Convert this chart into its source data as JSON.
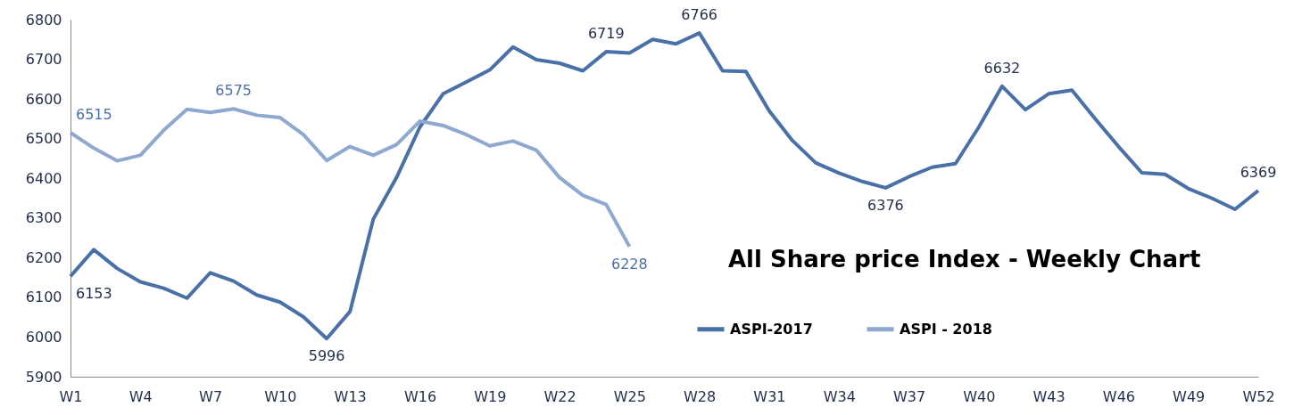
{
  "chart_data": {
    "type": "line",
    "title": "All Share price Index - Weekly Chart",
    "categories": [
      "W1",
      null,
      null,
      "W4",
      null,
      null,
      "W7",
      null,
      null,
      "W10",
      null,
      null,
      "W13",
      null,
      null,
      "W16",
      null,
      null,
      "W19",
      null,
      null,
      "W22",
      null,
      null,
      "W25",
      null,
      null,
      "W28",
      null,
      null,
      "W31",
      null,
      null,
      "W34",
      null,
      null,
      "W37",
      null,
      null,
      "W40",
      null,
      null,
      "W43",
      null,
      null,
      "W46",
      null,
      null,
      "W49",
      null,
      null,
      "W52"
    ],
    "series": [
      {
        "name": "ASPI-2017",
        "color": "#4a71a7",
        "values": [
          6153,
          6220,
          6173,
          6139,
          6123,
          6098,
          6162,
          6141,
          6106,
          6088,
          6051,
          5996,
          6064,
          6297,
          6402,
          6529,
          6613,
          6643,
          6673,
          6731,
          6699,
          6690,
          6671,
          6719,
          6716,
          6750,
          6739,
          6766,
          6671,
          6669,
          6570,
          6495,
          6439,
          6413,
          6392,
          6376,
          6404,
          6428,
          6437,
          6529,
          6632,
          6573,
          6613,
          6622,
          6550,
          6480,
          6414,
          6410,
          6374,
          6350,
          6322,
          6369
        ],
        "value_labels": [
          "6153",
          null,
          null,
          null,
          null,
          null,
          null,
          null,
          null,
          null,
          null,
          "5996",
          null,
          null,
          null,
          null,
          null,
          null,
          null,
          null,
          null,
          null,
          null,
          "6719",
          null,
          null,
          null,
          "6766",
          null,
          null,
          null,
          null,
          null,
          null,
          null,
          "6376",
          null,
          null,
          null,
          null,
          "6632",
          null,
          null,
          null,
          null,
          null,
          null,
          null,
          null,
          null,
          null,
          "6369"
        ]
      },
      {
        "name": "ASPI - 2018",
        "color": "#8fa8cf",
        "values": [
          6515,
          6476,
          6444,
          6458,
          6521,
          6574,
          6566,
          6575,
          6559,
          6553,
          6510,
          6445,
          6480,
          6458,
          6485,
          6544,
          6533,
          6510,
          6482,
          6494,
          6471,
          6402,
          6357,
          6334,
          6228,
          null,
          null,
          null,
          null,
          null,
          null,
          null,
          null,
          null,
          null,
          null,
          null,
          null,
          null,
          null,
          null,
          null,
          null,
          null,
          null,
          null,
          null,
          null,
          null,
          null,
          null,
          null
        ],
        "value_labels": [
          "6515",
          null,
          null,
          null,
          null,
          null,
          null,
          "6575",
          null,
          null,
          null,
          null,
          null,
          null,
          null,
          null,
          null,
          null,
          null,
          null,
          null,
          null,
          null,
          null,
          "6228",
          null,
          null,
          null,
          null,
          null,
          null,
          null,
          null,
          null,
          null,
          null,
          null,
          null,
          null,
          null,
          null,
          null,
          null,
          null,
          null,
          null,
          null,
          null,
          null,
          null,
          null,
          null
        ]
      }
    ],
    "ylim": [
      5900,
      6800
    ],
    "yticks": [
      5900,
      6000,
      6100,
      6200,
      6300,
      6400,
      6500,
      6600,
      6700,
      6800
    ],
    "grid": false,
    "legend": "bottom right"
  }
}
